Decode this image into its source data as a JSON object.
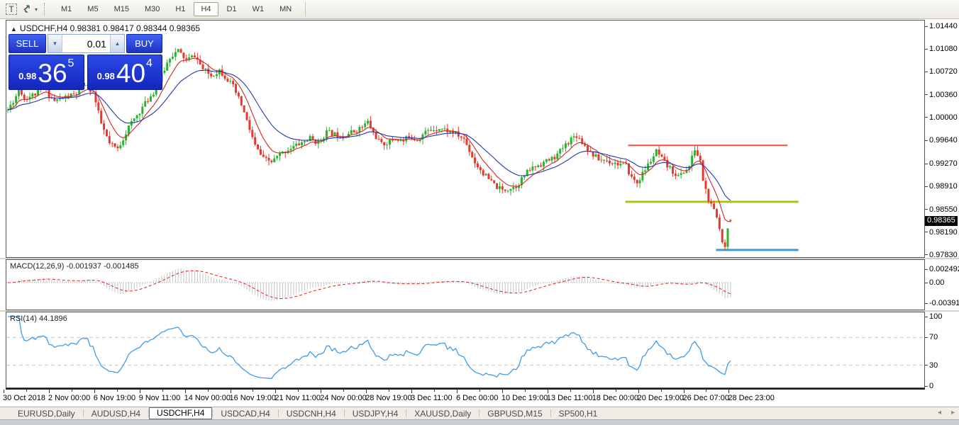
{
  "toolbar": {
    "text_tool_glyph": "T",
    "timeframes": [
      "M1",
      "M5",
      "M15",
      "M30",
      "H1",
      "H4",
      "D1",
      "W1",
      "MN"
    ],
    "active_timeframe": "H4"
  },
  "chart": {
    "header_text": "USDCHF,H4  0.98381 0.98417 0.98344 0.98365",
    "symbol": "USDCHF",
    "period": "H4",
    "ohlc": {
      "open": "0.98381",
      "high": "0.98417",
      "low": "0.98344",
      "close": "0.98365"
    },
    "current_price": "0.98365",
    "price_axis_labels": [
      [
        "1.01440",
        1.0144
      ],
      [
        "1.01080",
        1.0108
      ],
      [
        "1.00720",
        1.0072
      ],
      [
        "1.00360",
        1.0036
      ],
      [
        "1.00000",
        1.0
      ],
      [
        "0.99640",
        0.9964
      ],
      [
        "0.99270",
        0.9927
      ],
      [
        "0.98910",
        0.9891
      ],
      [
        "0.98550",
        0.9855
      ],
      [
        "0.98190",
        0.9819
      ],
      [
        "0.97830",
        0.9783
      ]
    ],
    "trade_panel": {
      "sell_label": "SELL",
      "buy_label": "BUY",
      "volume": "0.01",
      "sell_price_small": "0.98",
      "sell_price_big": "36",
      "sell_price_sup": "5",
      "buy_price_small": "0.98",
      "buy_price_big": "40",
      "buy_price_sup": "4"
    }
  },
  "indicators": {
    "macd": {
      "label": "MACD(12,26,9) -0.001937 -0.001485",
      "axis_labels": [
        [
          "0.002492",
          0.002492
        ],
        [
          "0.00",
          0
        ],
        [
          "-0.003913",
          -0.003913
        ]
      ]
    },
    "rsi": {
      "label": "RSI(14) 44.1896",
      "axis_labels": [
        [
          "100",
          100
        ],
        [
          "70",
          70
        ],
        [
          "30",
          30
        ],
        [
          "0",
          0
        ]
      ],
      "levels": [
        70,
        30
      ]
    }
  },
  "time_axis": {
    "labels": [
      "30 Oct 2018",
      "2 Nov 00:00",
      "6 Nov 19:00",
      "9 Nov 11:00",
      "14 Nov 00:00",
      "16 Nov 19:00",
      "21 Nov 11:00",
      "24 Nov 00:00",
      "28 Nov 19:00",
      "3 Dec 11:00",
      "6 Dec 00:00",
      "10 Dec 19:00",
      "13 Dec 11:00",
      "18 Dec 00:00",
      "20 Dec 19:00",
      "26 Dec 07:00",
      "28 Dec 23:00"
    ]
  },
  "tabs": {
    "items": [
      "EURUSD,Daily",
      "AUDUSD,H4",
      "USDCHF,H4",
      "USDCAD,H4",
      "USDCNH,H4",
      "USDJPY,H4",
      "XAUUSD,Daily",
      "GBPUSD,M15",
      "SP500,H1"
    ],
    "active_index": 2,
    "scroll_left_glyph": "◂",
    "scroll_right_glyph": "▸"
  },
  "chart_data": {
    "type": "candlestick",
    "symbol": "USDCHF",
    "timeframe": "H4",
    "seed": 11,
    "bars_total": 264,
    "price_range_visible": [
      0.977,
      1.0147
    ],
    "last_ohlc": {
      "open": 0.98381,
      "high": 0.98417,
      "low": 0.98344,
      "close": 0.98365
    },
    "price_anchors": [
      [
        0,
        1.0012
      ],
      [
        3,
        1.0034
      ],
      [
        4,
        1.0048
      ],
      [
        6,
        1.003
      ],
      [
        10,
        1.0037
      ],
      [
        13,
        1.0046
      ],
      [
        17,
        1.0026
      ],
      [
        21,
        1.0032
      ],
      [
        25,
        1.0037
      ],
      [
        28,
        1.0052
      ],
      [
        31,
        1.004
      ],
      [
        34,
        0.999
      ],
      [
        37,
        0.9958
      ],
      [
        40,
        0.995
      ],
      [
        44,
        0.9985
      ],
      [
        49,
        1.0016
      ],
      [
        53,
        1.004
      ],
      [
        56,
        1.0066
      ],
      [
        59,
        1.0096
      ],
      [
        62,
        1.0105
      ],
      [
        65,
        1.009
      ],
      [
        68,
        1.0098
      ],
      [
        71,
        1.0076
      ],
      [
        74,
        1.0066
      ],
      [
        77,
        1.0075
      ],
      [
        80,
        1.006
      ],
      [
        82,
        1.0048
      ],
      [
        85,
        1.002
      ],
      [
        87,
        0.9994
      ],
      [
        90,
        0.9955
      ],
      [
        93,
        0.9934
      ],
      [
        96,
        0.993
      ],
      [
        99,
        0.9941
      ],
      [
        102,
        0.995
      ],
      [
        105,
        0.9956
      ],
      [
        110,
        0.9967
      ],
      [
        113,
        0.996
      ],
      [
        116,
        0.9977
      ],
      [
        121,
        0.9971
      ],
      [
        126,
        0.9978
      ],
      [
        129,
        0.9985
      ],
      [
        131,
        0.9993
      ],
      [
        133,
        0.9976
      ],
      [
        136,
        0.9957
      ],
      [
        139,
        0.9962
      ],
      [
        141,
        0.9967
      ],
      [
        144,
        0.9962
      ],
      [
        146,
        0.9971
      ],
      [
        149,
        0.9965
      ],
      [
        152,
        0.9977
      ],
      [
        155,
        0.9982
      ],
      [
        157,
        0.9984
      ],
      [
        160,
        0.9979
      ],
      [
        162,
        0.9977
      ],
      [
        164,
        0.9971
      ],
      [
        166,
        0.9966
      ],
      [
        168,
        0.9948
      ],
      [
        170,
        0.9929
      ],
      [
        173,
        0.9912
      ],
      [
        175,
        0.9902
      ],
      [
        178,
        0.989
      ],
      [
        180,
        0.9885
      ],
      [
        183,
        0.9889
      ],
      [
        185,
        0.9892
      ],
      [
        188,
        0.9908
      ],
      [
        190,
        0.9918
      ],
      [
        193,
        0.9925
      ],
      [
        195,
        0.9929
      ],
      [
        198,
        0.9935
      ],
      [
        200,
        0.9941
      ],
      [
        202,
        0.9952
      ],
      [
        205,
        0.9967
      ],
      [
        207,
        0.9972
      ],
      [
        210,
        0.9956
      ],
      [
        212,
        0.9945
      ],
      [
        215,
        0.9934
      ],
      [
        218,
        0.9932
      ],
      [
        220,
        0.9929
      ],
      [
        223,
        0.9926
      ],
      [
        225,
        0.9923
      ],
      [
        227,
        0.9905
      ],
      [
        229,
        0.9897
      ],
      [
        232,
        0.9918
      ],
      [
        234,
        0.9932
      ],
      [
        236,
        0.9946
      ],
      [
        238,
        0.9934
      ],
      [
        240,
        0.9923
      ],
      [
        242,
        0.9915
      ],
      [
        244,
        0.9907
      ],
      [
        246,
        0.9914
      ],
      [
        248,
        0.9923
      ],
      [
        250,
        0.995
      ],
      [
        252,
        0.993
      ],
      [
        253,
        0.9902
      ],
      [
        255,
        0.9869
      ],
      [
        257,
        0.9852
      ],
      [
        258,
        0.9842
      ],
      [
        260,
        0.9806
      ],
      [
        261,
        0.9799
      ],
      [
        262,
        0.9824
      ],
      [
        263,
        0.98365
      ]
    ],
    "horizontal_lines": [
      {
        "name": "resistance-line",
        "color": "#FF4A3A",
        "price": 0.9956,
        "from_bar": 226,
        "to_bar": 284,
        "width": 2
      },
      {
        "name": "mid-support-line",
        "color": "#AEC404",
        "price": 0.9867,
        "from_bar": 225,
        "to_bar": 288,
        "width": 3
      },
      {
        "name": "low-support-line",
        "color": "#3E9BDD",
        "price": 0.9791,
        "from_bar": 258,
        "to_bar": 288,
        "width": 3
      }
    ],
    "moving_averages": [
      {
        "name": "ma-fast",
        "color": "#CC2A2A",
        "period": 8
      },
      {
        "name": "ma-slow",
        "color": "#2038B0",
        "period": 21
      }
    ],
    "macd": {
      "params": [
        12,
        26,
        9
      ],
      "value": -0.001937,
      "signal": -0.001485,
      "axis_max": 0.002492,
      "axis_min": -0.003913,
      "hist_color": "#C4C4C4",
      "signal_color": "#E02020"
    },
    "rsi": {
      "period": 14,
      "value": 44.1896,
      "line_color": "#3E9BEC",
      "level_color": "#C8C8C8"
    },
    "candle_colors": {
      "bull": "#2DB22D",
      "bear": "#E4392E"
    }
  }
}
